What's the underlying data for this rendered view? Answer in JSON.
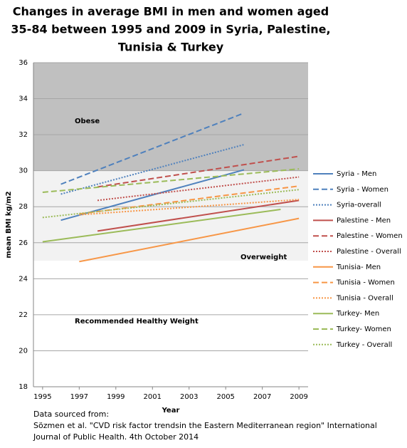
{
  "chart_data": {
    "type": "line",
    "title": [
      "Changes in average BMI in men and women aged",
      "35-84 between 1995 and 2009 in Syria, Palestine,",
      "Tunisia & Turkey"
    ],
    "x_label": "Year",
    "y_label": "mean BMI kg/m2",
    "xlim": [
      1994.5,
      2009.5
    ],
    "xticks": [
      1995,
      1997,
      1999,
      2001,
      2003,
      2005,
      2007,
      2009
    ],
    "ylim": [
      18,
      36
    ],
    "yticks": [
      18,
      20,
      22,
      24,
      26,
      28,
      30,
      32,
      34,
      36
    ],
    "grid": true,
    "bands": [
      {
        "label": "Obese",
        "from": 30,
        "to": 36,
        "color": "#c0c0c0"
      },
      {
        "label": "Overweight",
        "from": 25,
        "to": 30,
        "color": "#f2f2f2"
      }
    ],
    "annotations": [
      "Recommended Healthy Weight"
    ],
    "legend": "right",
    "series": [
      {
        "name": "Syria - Men",
        "color": "#4f81bd",
        "dash": "solid",
        "x": [
          1996,
          2006
        ],
        "values": [
          27.25,
          30.05
        ]
      },
      {
        "name": "Syria - Women",
        "color": "#4f81bd",
        "dash": "dashed",
        "x": [
          1996,
          2006
        ],
        "values": [
          29.25,
          33.2
        ]
      },
      {
        "name": "Syria-overall",
        "color": "#4f81bd",
        "dash": "dotted",
        "x": [
          1996,
          2006
        ],
        "values": [
          28.7,
          31.45
        ]
      },
      {
        "name": "Palestine - Men",
        "color": "#c0504d",
        "dash": "solid",
        "x": [
          1998,
          2009
        ],
        "values": [
          26.65,
          28.35
        ]
      },
      {
        "name": "Palestine - Women",
        "color": "#c0504d",
        "dash": "dashed",
        "x": [
          1998,
          2009
        ],
        "values": [
          29.1,
          30.8
        ]
      },
      {
        "name": "Palestine - Overall",
        "color": "#c0504d",
        "dash": "dotted",
        "x": [
          1998,
          2009
        ],
        "values": [
          28.35,
          29.65
        ]
      },
      {
        "name": "Tunisia- Men",
        "color": "#f79646",
        "dash": "solid",
        "x": [
          1997,
          2009
        ],
        "values": [
          24.95,
          27.35
        ]
      },
      {
        "name": "Tunisia - Women",
        "color": "#f79646",
        "dash": "dashed",
        "x": [
          1997,
          2009
        ],
        "values": [
          27.6,
          29.15
        ]
      },
      {
        "name": "Tunisia - Overall",
        "color": "#f79646",
        "dash": "dotted",
        "x": [
          1997,
          2009
        ],
        "values": [
          27.55,
          28.4
        ]
      },
      {
        "name": "Turkey- Men",
        "color": "#9bbb59",
        "dash": "solid",
        "x": [
          1995,
          2008
        ],
        "values": [
          26.05,
          27.85
        ]
      },
      {
        "name": "Turkey- Women",
        "color": "#9bbb59",
        "dash": "dashed",
        "x": [
          1995,
          2009
        ],
        "values": [
          28.8,
          30.1
        ]
      },
      {
        "name": "Turkey - Overall",
        "color": "#9bbb59",
        "dash": "dotted",
        "x": [
          1995,
          2009
        ],
        "values": [
          27.4,
          28.95
        ]
      }
    ],
    "source": [
      "Data sourced from:",
      "Sözmen et al. \"CVD risk factor trendsin the Eastern Mediterranean region\" International",
      "Journal of Public Health. 4th October 2014"
    ]
  }
}
